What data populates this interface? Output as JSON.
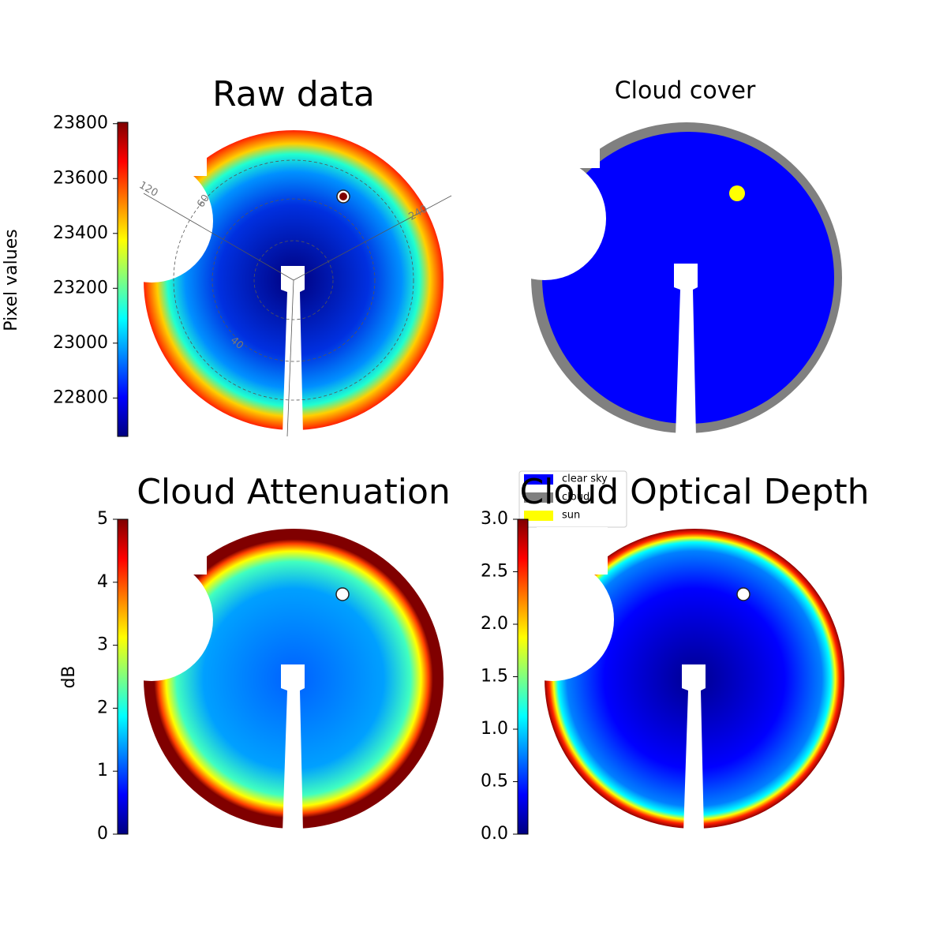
{
  "chart_data": [
    {
      "type": "image",
      "title": "Raw data",
      "colorbar_label": "Pixel values",
      "ylim": [
        22660,
        23805
      ],
      "yticks": [
        22800,
        23000,
        23200,
        23400,
        23600,
        23800
      ],
      "annotations": [
        "120",
        "60",
        "240",
        "40"
      ]
    },
    {
      "type": "image",
      "title": "Cloud cover",
      "legend": [
        {
          "name": "clear sky",
          "color": "#0000ff"
        },
        {
          "name": "cloud",
          "color": "#808080"
        },
        {
          "name": "sun",
          "color": "#ffff00"
        }
      ]
    },
    {
      "type": "image",
      "title": "Cloud Attenuation",
      "colorbar_label": "dB",
      "ylim": [
        0,
        5
      ],
      "yticks": [
        0,
        1,
        2,
        3,
        4,
        5
      ]
    },
    {
      "type": "image",
      "title": "Cloud Optical Depth",
      "ylim": [
        0,
        3
      ],
      "yticks": [
        {
          "value": 0,
          "label": "0.0"
        },
        0.5,
        {
          "value": 1,
          "label": "1.0"
        },
        1.5,
        {
          "value": 2,
          "label": "2.0"
        },
        2.5,
        {
          "value": 3,
          "label": "3.0"
        }
      ]
    }
  ]
}
